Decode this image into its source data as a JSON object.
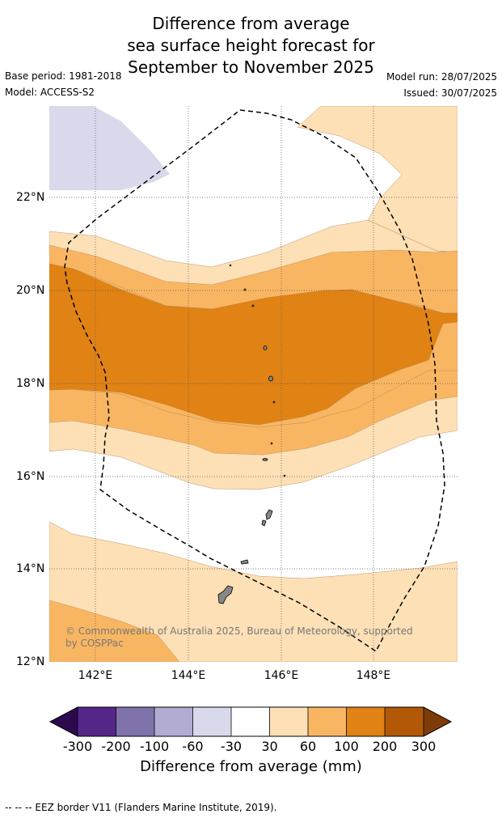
{
  "title_lines": [
    "Difference from average",
    "sea surface height forecast for",
    "September to November 2025"
  ],
  "meta": {
    "base_period": "Base period: 1981-2018",
    "model": "Model: ACCESS-S2",
    "model_run": "Model run: 28/07/2025",
    "issued": "Issued: 30/07/2025"
  },
  "map": {
    "lat_labels": [
      "22°N",
      "20°N",
      "18°N",
      "16°N",
      "14°N",
      "12°N"
    ],
    "lon_labels": [
      "142°E",
      "144°E",
      "146°E",
      "148°E"
    ],
    "copyright_line1": "© Commonwealth of Australia 2025, Bureau of Meteorology, supported",
    "copyright_line2": "by COSPPac",
    "colors": {
      "n300": "#2d0a4e",
      "n200": "#542788",
      "n100": "#8073ac",
      "n60": "#b2abd2",
      "n30": "#d8daeb",
      "zero": "#ffffff",
      "p30": "#fde0b6",
      "p60": "#f9b662",
      "p100": "#e08214",
      "p200": "#b35806",
      "p300": "#7f3b08"
    }
  },
  "colorbar": {
    "ticks": [
      "-300",
      "-200",
      "-100",
      "-60",
      "-30",
      "30",
      "60",
      "100",
      "200",
      "300"
    ],
    "title": "Difference from average (mm)"
  },
  "footer": "--  --  -- EEZ border V11 (Flanders Marine Institute, 2019)."
}
